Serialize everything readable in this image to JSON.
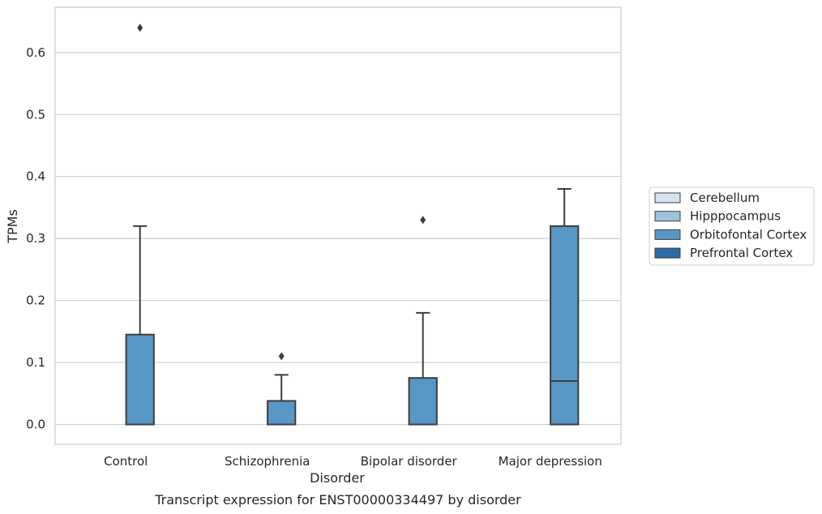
{
  "chart_data": {
    "type": "box",
    "xlabel": "Disorder",
    "ylabel": "TPMs",
    "caption": "Transcript expression for ENST00000334497 by disorder",
    "ylim": [
      -0.032,
      0.673
    ],
    "yticks": [
      0.0,
      0.1,
      0.2,
      0.3,
      0.4,
      0.5,
      0.6
    ],
    "ytick_labels": [
      "0.0",
      "0.1",
      "0.2",
      "0.3",
      "0.4",
      "0.5",
      "0.6"
    ],
    "grid": true,
    "legend_position": "right",
    "categories": [
      "Control",
      "Schizophrenia",
      "Bipolar disorder",
      "Major depression"
    ],
    "series": [
      {
        "name": "Cerebellum",
        "color": "#d3e3f1",
        "boxes": [
          {
            "min": 0,
            "q1": 0,
            "median": 0,
            "q3": 0,
            "max": 0,
            "outliers": []
          },
          {
            "min": 0,
            "q1": 0,
            "median": 0,
            "q3": 0,
            "max": 0,
            "outliers": []
          },
          {
            "min": 0,
            "q1": 0,
            "median": 0,
            "q3": 0,
            "max": 0,
            "outliers": []
          },
          {
            "min": 0,
            "q1": 0,
            "median": 0,
            "q3": 0,
            "max": 0,
            "outliers": []
          }
        ]
      },
      {
        "name": "Hipppocampus",
        "color": "#9ac4dd",
        "boxes": [
          {
            "min": 0,
            "q1": 0,
            "median": 0,
            "q3": 0,
            "max": 0,
            "outliers": []
          },
          {
            "min": 0,
            "q1": 0,
            "median": 0,
            "q3": 0,
            "max": 0,
            "outliers": []
          },
          {
            "min": 0,
            "q1": 0,
            "median": 0,
            "q3": 0,
            "max": 0,
            "outliers": []
          },
          {
            "min": 0,
            "q1": 0,
            "median": 0,
            "q3": 0,
            "max": 0,
            "outliers": []
          }
        ]
      },
      {
        "name": "Orbitofontal Cortex",
        "color": "#5797c6",
        "boxes": [
          {
            "min": 0,
            "q1": 0,
            "median": 0,
            "q3": 0.145,
            "max": 0.32,
            "outliers": [
              0.64
            ]
          },
          {
            "min": 0,
            "q1": 0,
            "median": 0,
            "q3": 0.038,
            "max": 0.08,
            "outliers": [
              0.11
            ]
          },
          {
            "min": 0,
            "q1": 0,
            "median": 0,
            "q3": 0.075,
            "max": 0.18,
            "outliers": [
              0.33
            ]
          },
          {
            "min": 0,
            "q1": 0,
            "median": 0.07,
            "q3": 0.32,
            "max": 0.38,
            "outliers": []
          }
        ]
      },
      {
        "name": "Prefrontal Cortex",
        "color": "#2d6aa8",
        "boxes": [
          {
            "min": 0,
            "q1": 0,
            "median": 0,
            "q3": 0,
            "max": 0,
            "outliers": []
          },
          {
            "min": 0,
            "q1": 0,
            "median": 0,
            "q3": 0,
            "max": 0,
            "outliers": []
          },
          {
            "min": 0,
            "q1": 0,
            "median": 0,
            "q3": 0,
            "max": 0,
            "outliers": []
          },
          {
            "min": 0,
            "q1": 0,
            "median": 0,
            "q3": 0,
            "max": 0,
            "outliers": []
          }
        ]
      }
    ]
  },
  "colors": {
    "grid": "#cccccc",
    "frame": "#cccccc",
    "line": "#3d3d3d",
    "text": "#262626"
  }
}
